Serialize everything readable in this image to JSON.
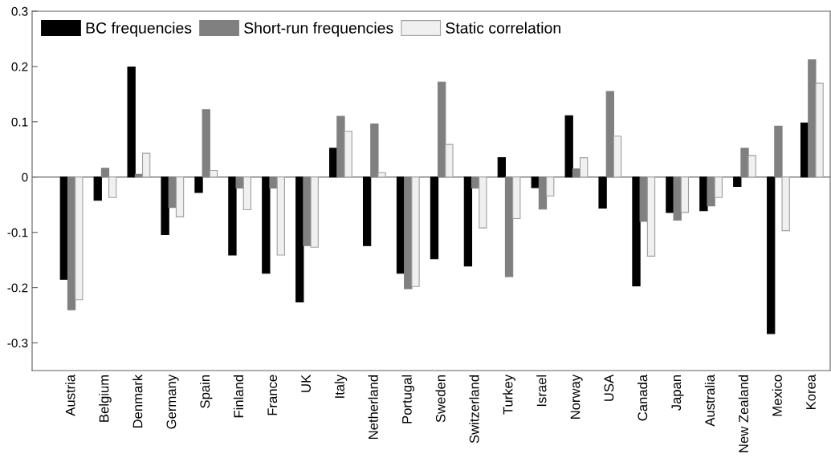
{
  "chart_data": {
    "type": "bar",
    "categories": [
      "Austria",
      "Belgium",
      "Denmark",
      "Germany",
      "Spain",
      "Finland",
      "France",
      "UK",
      "Italy",
      "Netherland",
      "Portugal",
      "Sweden",
      "Switzerland",
      "Turkey",
      "Israel",
      "Norway",
      "USA",
      "Canada",
      "Japan",
      "Australia",
      "New Zealand",
      "Mexico",
      "Korea"
    ],
    "series": [
      {
        "name": "BC frequencies",
        "color": "#000000",
        "values": [
          -0.185,
          -0.042,
          0.199,
          -0.104,
          -0.028,
          -0.141,
          -0.174,
          -0.226,
          0.052,
          -0.124,
          -0.174,
          -0.148,
          -0.161,
          0.035,
          -0.019,
          0.111,
          -0.056,
          -0.197,
          -0.064,
          -0.061,
          -0.017,
          -0.283,
          0.098
        ]
      },
      {
        "name": "Short-run frequencies",
        "color": "#808080",
        "values": [
          -0.24,
          0.016,
          0.005,
          -0.055,
          0.122,
          -0.02,
          -0.02,
          -0.124,
          0.11,
          0.096,
          -0.202,
          0.172,
          -0.02,
          -0.18,
          -0.058,
          0.015,
          0.155,
          -0.08,
          -0.078,
          -0.052,
          0.052,
          0.092,
          0.212
        ]
      },
      {
        "name": "Static correlation",
        "color": "#f0f0f0",
        "values": [
          -0.222,
          -0.037,
          0.043,
          -0.072,
          0.012,
          -0.059,
          -0.141,
          -0.127,
          0.083,
          0.008,
          -0.198,
          0.059,
          -0.092,
          -0.075,
          -0.034,
          0.035,
          0.074,
          -0.143,
          -0.064,
          -0.037,
          0.039,
          -0.097,
          0.17
        ]
      }
    ],
    "ylim": [
      -0.35,
      0.3
    ],
    "yticks": [
      {
        "value": -0.3,
        "label": "-0.3"
      },
      {
        "value": -0.2,
        "label": "-0.2"
      },
      {
        "value": -0.1,
        "label": "-0.1"
      },
      0,
      0.1,
      0.2,
      0.3
    ],
    "ref_lines": [
      {
        "axis": "y",
        "value": 0,
        "color": "#808080"
      }
    ],
    "grid": false,
    "legend": "top left"
  }
}
